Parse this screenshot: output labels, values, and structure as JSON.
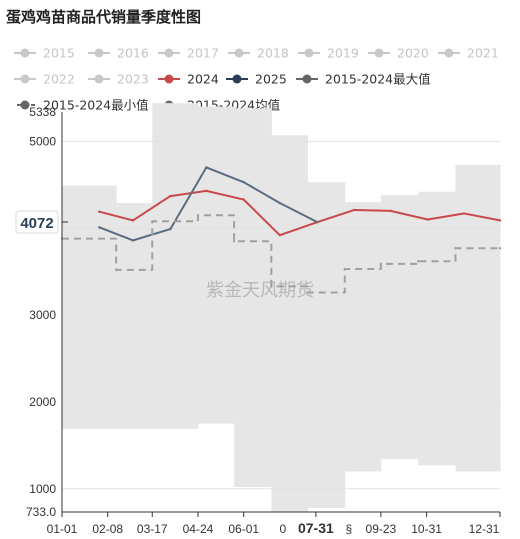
{
  "title": "蛋鸡鸡苗商品代销量季度性图",
  "watermark": "紫金天风期货",
  "chart_data": {
    "type": "line",
    "x_tick_labels": [
      "01-01",
      "02-08",
      "03-17",
      "04-24",
      "06-01",
      "07-31",
      "09-23",
      "10-31",
      "12-31"
    ],
    "x_partial_tick_labels": [
      "0",
      "§"
    ],
    "y_tick_labels": [
      "5338",
      "5000",
      "4000",
      "3000",
      "2000",
      "1000",
      "733.0"
    ],
    "ylim": [
      733,
      5338
    ],
    "xlim": [
      "01-01",
      "12-31"
    ],
    "grid": "horizontal",
    "legend_position": "top",
    "cursor": {
      "x": "07-31",
      "y_label": "4072",
      "y": 4072
    },
    "legend": [
      {
        "name": "2015",
        "color": "#c8c8c8",
        "active": false,
        "marker": "dot"
      },
      {
        "name": "2016",
        "color": "#c8c8c8",
        "active": false,
        "marker": "dot"
      },
      {
        "name": "2017",
        "color": "#c8c8c8",
        "active": false,
        "marker": "dot"
      },
      {
        "name": "2018",
        "color": "#c8c8c8",
        "active": false,
        "marker": "dot"
      },
      {
        "name": "2019",
        "color": "#c8c8c8",
        "active": false,
        "marker": "dot"
      },
      {
        "name": "2020",
        "color": "#c8c8c8",
        "active": false,
        "marker": "dot"
      },
      {
        "name": "2021",
        "color": "#c8c8c8",
        "active": false,
        "marker": "dot"
      },
      {
        "name": "2022",
        "color": "#c8c8c8",
        "active": false,
        "marker": "dot"
      },
      {
        "name": "2023",
        "color": "#c8c8c8",
        "active": false,
        "marker": "dot"
      },
      {
        "name": "2024",
        "color": "#c9484a",
        "active": true,
        "marker": "dot"
      },
      {
        "name": "2025",
        "color": "#2a3f57",
        "active": true,
        "marker": "dot"
      },
      {
        "name": "2015-2024最大值",
        "color": "#666666",
        "active": true,
        "marker": "dot"
      },
      {
        "name": "2015-2024最小值",
        "color": "#666666",
        "active": true,
        "marker": "dash-dot"
      },
      {
        "name": "2015-2024均值",
        "color": "#666666",
        "active": true,
        "marker": "dot"
      }
    ],
    "range_band": [
      {
        "x0": "01-01",
        "x1": "02-15",
        "max": 4490,
        "min": 1690
      },
      {
        "x0": "02-15",
        "x1": "03-17",
        "max": 4290,
        "min": 1690
      },
      {
        "x0": "03-17",
        "x1": "04-24",
        "max": 5440,
        "min": 1690
      },
      {
        "x0": "04-24",
        "x1": "05-24",
        "max": 5400,
        "min": 1750
      },
      {
        "x0": "05-24",
        "x1": "06-24",
        "max": 5380,
        "min": 1020
      },
      {
        "x0": "06-24",
        "x1": "07-24",
        "max": 5070,
        "min": 733
      },
      {
        "x0": "07-24",
        "x1": "08-24",
        "max": 4530,
        "min": 780
      },
      {
        "x0": "08-24",
        "x1": "09-23",
        "max": 4300,
        "min": 1200
      },
      {
        "x0": "09-23",
        "x1": "10-24",
        "max": 4380,
        "min": 1340
      },
      {
        "x0": "10-24",
        "x1": "11-24",
        "max": 4420,
        "min": 1270
      },
      {
        "x0": "11-24",
        "x1": "12-31",
        "max": 4730,
        "min": 1200
      }
    ],
    "series": [
      {
        "name": "2024",
        "color": "#c9484a",
        "style": "solid",
        "x": [
          "02-01",
          "03-01",
          "04-01",
          "05-01",
          "06-01",
          "07-01",
          "08-01",
          "09-01",
          "10-01",
          "11-01",
          "12-01",
          "12-31"
        ],
        "values": [
          4190,
          4090,
          4370,
          4430,
          4330,
          3920,
          4070,
          4210,
          4200,
          4100,
          4170,
          4090
        ]
      },
      {
        "name": "2025",
        "color": "#5b6c80",
        "style": "solid",
        "x": [
          "02-01",
          "03-01",
          "04-01",
          "05-01",
          "06-01",
          "07-01",
          "08-01"
        ],
        "values": [
          4010,
          3860,
          3990,
          4700,
          4530,
          4290,
          4072
        ]
      },
      {
        "name": "2015-2024均值",
        "color": "#a0a0a0",
        "style": "dashed",
        "step": true,
        "x": [
          "01-01",
          "02-15",
          "03-17",
          "04-24",
          "05-24",
          "06-24",
          "07-24",
          "08-24",
          "09-23",
          "10-24",
          "11-24",
          "12-31"
        ],
        "values": [
          3880,
          3520,
          4080,
          4150,
          3850,
          3330,
          3260,
          3530,
          3590,
          3620,
          3770,
          3770
        ]
      }
    ]
  }
}
